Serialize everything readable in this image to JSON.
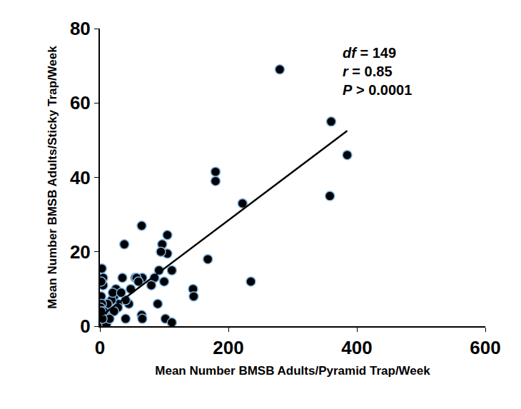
{
  "chart_data": {
    "type": "scatter",
    "x_label": "Mean Number BMSB Adults/Pyramid Trap/Week",
    "y_label": "Mean Number BMSB Adults/Sticky Trap/Week",
    "annotations": [
      "df = 149",
      "r = 0.85",
      "P > 0.0001"
    ],
    "xlim": [
      0,
      600
    ],
    "xticks": [
      0,
      200,
      400,
      600
    ],
    "ylim": [
      0,
      80
    ],
    "yticks": [
      0,
      20,
      40,
      60,
      80
    ],
    "grid": false,
    "series": [
      {
        "type": "scatter",
        "marker": "circle",
        "color": "#000000",
        "x": [
          280,
          360,
          385,
          358,
          235,
          222,
          180,
          180,
          168,
          145,
          146,
          112,
          105,
          105,
          97,
          95,
          100,
          102,
          112,
          92,
          90,
          85,
          80,
          65,
          66,
          65,
          66,
          55,
          57,
          60,
          48,
          45,
          38,
          35,
          40,
          40,
          30,
          28,
          25,
          22,
          18,
          15,
          12,
          10,
          8,
          5,
          5,
          3,
          2,
          2,
          3,
          1,
          1,
          1,
          2,
          0,
          0,
          6,
          10,
          20,
          28,
          33,
          22,
          15,
          4,
          2
        ],
        "values": [
          69,
          55,
          46,
          35,
          12,
          33,
          41.5,
          39,
          18,
          10,
          8,
          15,
          24.5,
          19.5,
          22,
          20,
          12,
          2,
          1,
          15,
          6,
          13,
          11,
          27,
          13,
          3,
          2,
          13,
          13,
          12,
          10,
          6,
          22,
          13,
          7,
          2,
          9,
          6,
          10,
          8,
          7,
          4,
          6,
          2,
          3,
          13,
          11,
          15.5,
          12,
          8,
          6,
          5,
          3,
          1,
          0.5,
          2,
          1,
          4,
          0.5,
          9,
          5,
          9,
          4,
          2,
          2,
          4
        ]
      },
      {
        "type": "line",
        "line_style": "solid",
        "color": "#000000",
        "x": [
          0,
          385
        ],
        "values": [
          2.5,
          52.5
        ]
      }
    ]
  }
}
